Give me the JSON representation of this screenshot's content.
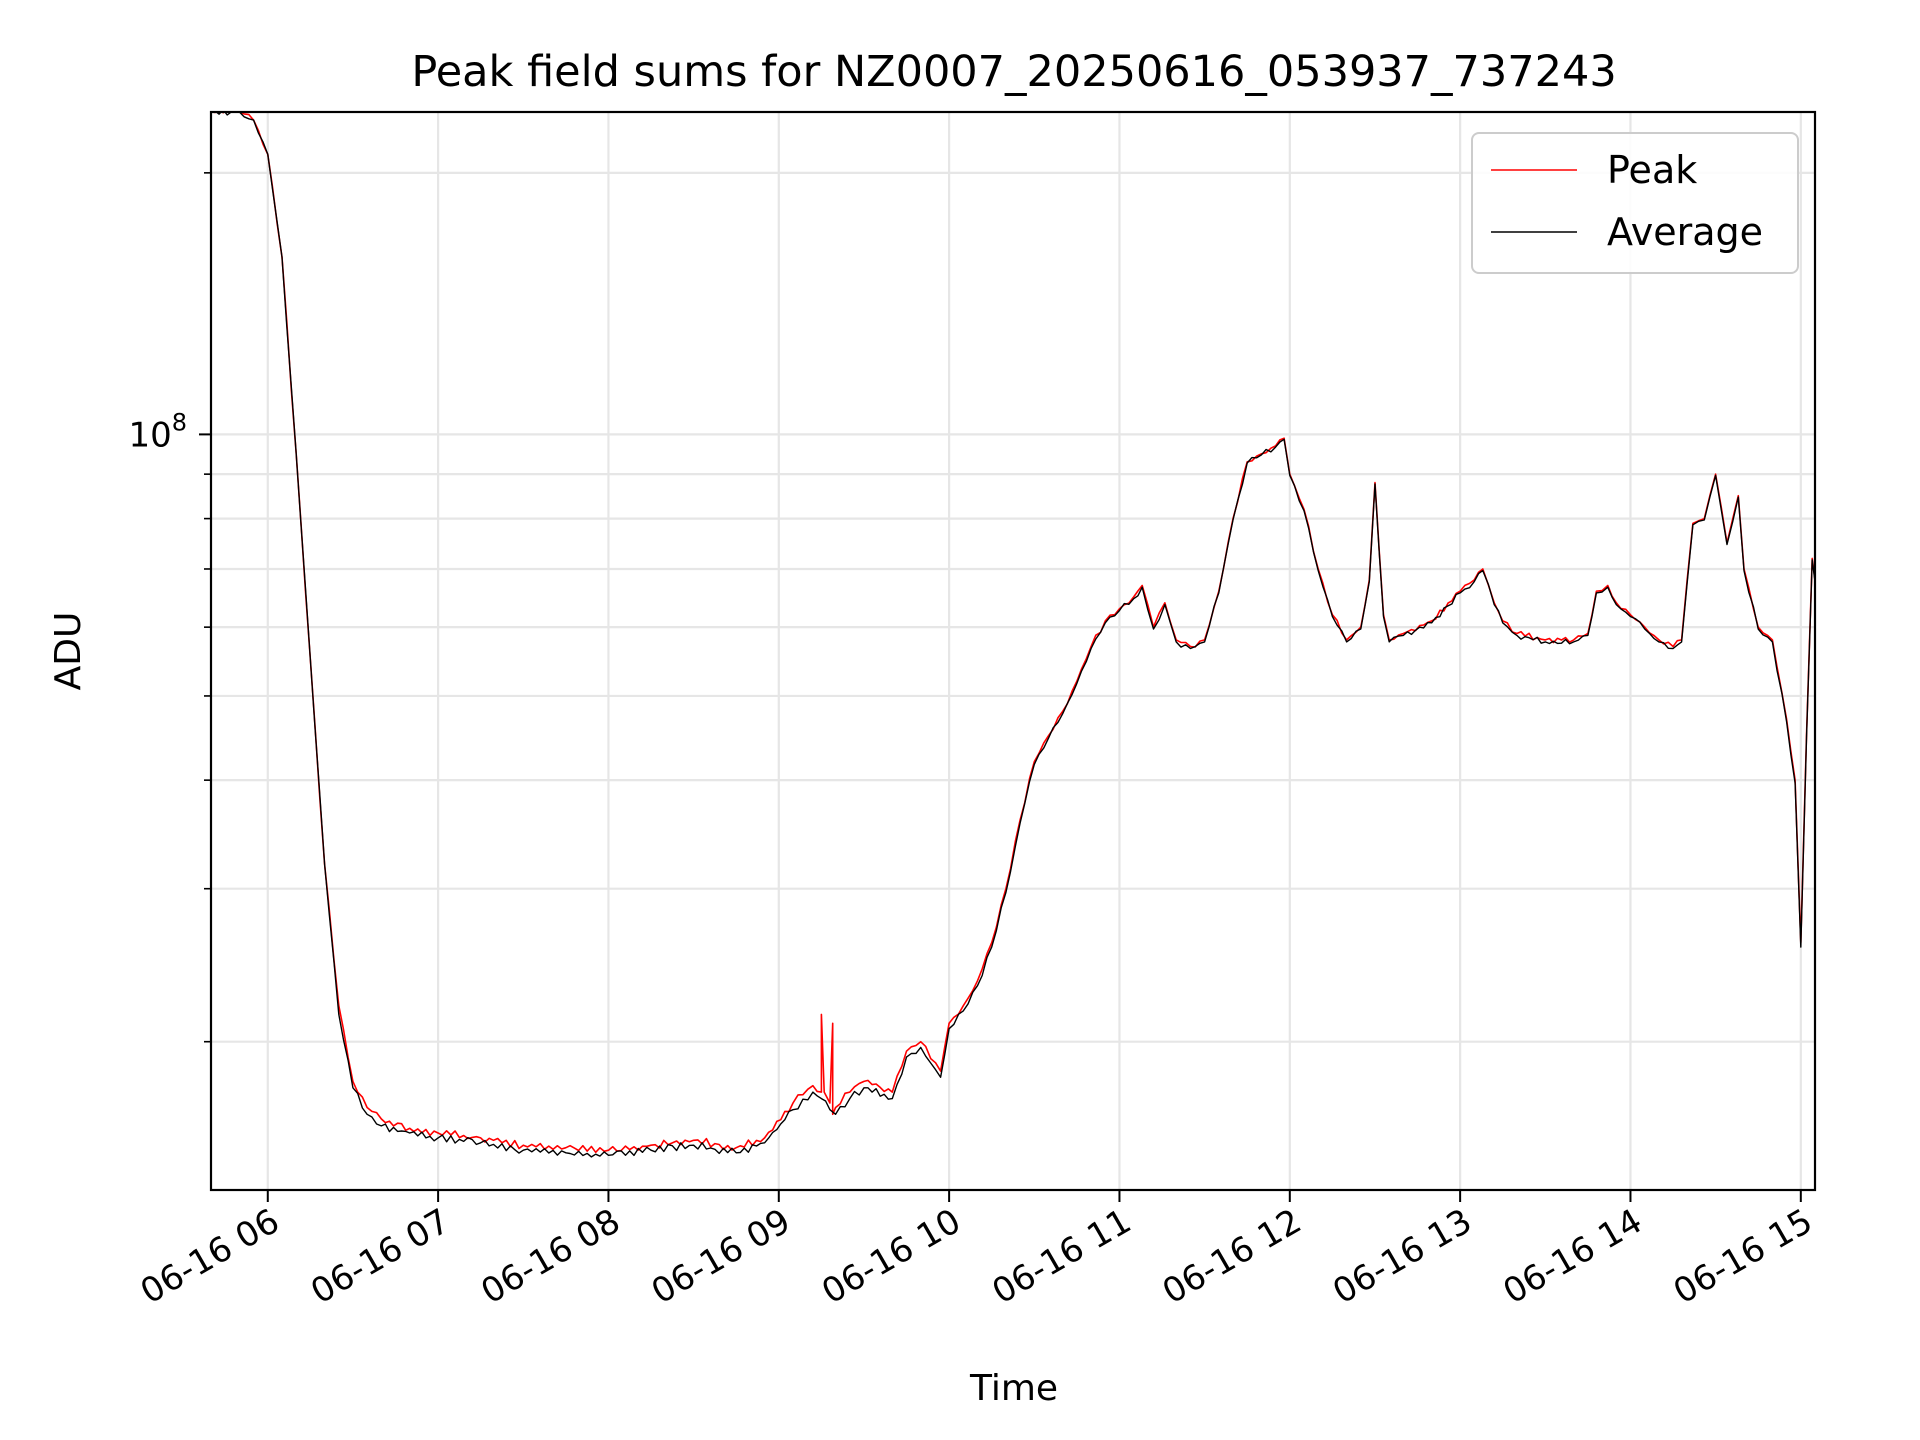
{
  "chart_data": {
    "type": "line",
    "title": "Peak field sums for NZ0007_20250616_053937_737243",
    "xlabel": "Time",
    "ylabel": "ADU",
    "y_scale": "log",
    "y_major_tick_label": {
      "base": "10",
      "exponent": "8",
      "value": 100000000
    },
    "y_minor_ticks": [
      20000000,
      30000000,
      40000000,
      50000000,
      60000000,
      70000000,
      80000000,
      90000000,
      200000000
    ],
    "x_unit": "time",
    "x_ticks": [
      {
        "t": "2025-06-16T06:00",
        "label": "06-16 06"
      },
      {
        "t": "2025-06-16T07:00",
        "label": "06-16 07"
      },
      {
        "t": "2025-06-16T08:00",
        "label": "06-16 08"
      },
      {
        "t": "2025-06-16T09:00",
        "label": "06-16 09"
      },
      {
        "t": "2025-06-16T10:00",
        "label": "06-16 10"
      },
      {
        "t": "2025-06-16T11:00",
        "label": "06-16 11"
      },
      {
        "t": "2025-06-16T12:00",
        "label": "06-16 12"
      },
      {
        "t": "2025-06-16T13:00",
        "label": "06-16 13"
      },
      {
        "t": "2025-06-16T14:00",
        "label": "06-16 14"
      },
      {
        "t": "2025-06-16T15:00",
        "label": "06-16 15"
      }
    ],
    "xlim": [
      "2025-06-16T05:40",
      "2025-06-16T15:05"
    ],
    "ylim": [
      13500000,
      235000000
    ],
    "grid": true,
    "legend_position": "top-right",
    "series": [
      {
        "name": "Peak",
        "color": "#ff0000",
        "t": [
          "2025-06-16T05:40",
          "2025-06-16T05:50",
          "2025-06-16T05:55",
          "2025-06-16T06:00",
          "2025-06-16T06:05",
          "2025-06-16T06:10",
          "2025-06-16T06:15",
          "2025-06-16T06:20",
          "2025-06-16T06:25",
          "2025-06-16T06:30",
          "2025-06-16T06:35",
          "2025-06-16T06:40",
          "2025-06-16T06:50",
          "2025-06-16T07:00",
          "2025-06-16T07:15",
          "2025-06-16T07:30",
          "2025-06-16T07:45",
          "2025-06-16T08:00",
          "2025-06-16T08:15",
          "2025-06-16T08:30",
          "2025-06-16T08:45",
          "2025-06-16T08:55",
          "2025-06-16T09:05",
          "2025-06-16T09:12",
          "2025-06-16T09:15",
          "2025-06-16T09:15",
          "2025-06-16T09:16",
          "2025-06-16T09:18",
          "2025-06-16T09:19",
          "2025-06-16T09:19",
          "2025-06-16T09:20",
          "2025-06-16T09:25",
          "2025-06-16T09:30",
          "2025-06-16T09:40",
          "2025-06-16T09:45",
          "2025-06-16T09:50",
          "2025-06-16T09:57",
          "2025-06-16T10:00",
          "2025-06-16T10:05",
          "2025-06-16T10:10",
          "2025-06-16T10:15",
          "2025-06-16T10:20",
          "2025-06-16T10:25",
          "2025-06-16T10:30",
          "2025-06-16T10:35",
          "2025-06-16T10:40",
          "2025-06-16T10:45",
          "2025-06-16T10:50",
          "2025-06-16T10:55",
          "2025-06-16T11:00",
          "2025-06-16T11:05",
          "2025-06-16T11:08",
          "2025-06-16T11:12",
          "2025-06-16T11:16",
          "2025-06-16T11:20",
          "2025-06-16T11:25",
          "2025-06-16T11:30",
          "2025-06-16T11:35",
          "2025-06-16T11:40",
          "2025-06-16T11:45",
          "2025-06-16T11:50",
          "2025-06-16T11:55",
          "2025-06-16T11:58",
          "2025-06-16T12:00",
          "2025-06-16T12:05",
          "2025-06-16T12:10",
          "2025-06-16T12:15",
          "2025-06-16T12:20",
          "2025-06-16T12:25",
          "2025-06-16T12:28",
          "2025-06-16T12:30",
          "2025-06-16T12:33",
          "2025-06-16T12:35",
          "2025-06-16T12:40",
          "2025-06-16T12:50",
          "2025-06-16T13:00",
          "2025-06-16T13:05",
          "2025-06-16T13:08",
          "2025-06-16T13:12",
          "2025-06-16T13:15",
          "2025-06-16T13:20",
          "2025-06-16T13:30",
          "2025-06-16T13:40",
          "2025-06-16T13:45",
          "2025-06-16T13:48",
          "2025-06-16T13:52",
          "2025-06-16T13:55",
          "2025-06-16T14:00",
          "2025-06-16T14:05",
          "2025-06-16T14:10",
          "2025-06-16T14:15",
          "2025-06-16T14:18",
          "2025-06-16T14:22",
          "2025-06-16T14:26",
          "2025-06-16T14:30",
          "2025-06-16T14:34",
          "2025-06-16T14:38",
          "2025-06-16T14:40",
          "2025-06-16T14:45",
          "2025-06-16T14:50",
          "2025-06-16T14:55",
          "2025-06-16T14:58",
          "2025-06-16T15:00",
          "2025-06-16T15:02",
          "2025-06-16T15:04",
          "2025-06-16T15:05"
        ],
        "values": [
          235000000,
          235000000,
          230000000,
          210000000,
          160000000,
          95000000,
          55000000,
          32000000,
          22000000,
          18000000,
          16800000,
          16300000,
          15900000,
          15700000,
          15500000,
          15200000,
          15100000,
          15000000,
          15200000,
          15400000,
          15100000,
          15500000,
          17000000,
          17800000,
          17500000,
          21500000,
          17500000,
          17000000,
          21000000,
          16500000,
          16800000,
          17500000,
          18000000,
          17500000,
          19500000,
          20000000,
          18500000,
          21000000,
          22000000,
          23500000,
          26000000,
          30000000,
          36000000,
          42000000,
          45000000,
          48000000,
          52000000,
          57000000,
          61000000,
          63000000,
          65000000,
          67000000,
          60000000,
          64000000,
          58000000,
          57000000,
          58000000,
          66000000,
          80000000,
          93000000,
          95000000,
          97000000,
          99000000,
          90000000,
          82000000,
          70000000,
          62000000,
          58000000,
          60000000,
          68000000,
          88000000,
          62000000,
          58000000,
          59000000,
          61000000,
          66000000,
          68000000,
          70000000,
          64000000,
          61000000,
          59000000,
          58000000,
          58000000,
          59000000,
          66000000,
          67000000,
          64000000,
          62000000,
          60000000,
          58000000,
          57000000,
          58000000,
          79000000,
          80000000,
          90000000,
          75000000,
          85000000,
          70000000,
          60000000,
          58000000,
          47000000,
          40000000,
          26000000,
          45000000,
          72000000,
          68000000
        ]
      },
      {
        "name": "Average",
        "color": "#000000",
        "t": [
          "2025-06-16T05:40",
          "2025-06-16T05:50",
          "2025-06-16T05:55",
          "2025-06-16T06:00",
          "2025-06-16T06:05",
          "2025-06-16T06:10",
          "2025-06-16T06:15",
          "2025-06-16T06:20",
          "2025-06-16T06:25",
          "2025-06-16T06:30",
          "2025-06-16T06:35",
          "2025-06-16T06:40",
          "2025-06-16T06:50",
          "2025-06-16T07:00",
          "2025-06-16T07:15",
          "2025-06-16T07:30",
          "2025-06-16T07:45",
          "2025-06-16T08:00",
          "2025-06-16T08:15",
          "2025-06-16T08:30",
          "2025-06-16T08:45",
          "2025-06-16T08:55",
          "2025-06-16T09:05",
          "2025-06-16T09:12",
          "2025-06-16T09:15",
          "2025-06-16T09:18",
          "2025-06-16T09:20",
          "2025-06-16T09:25",
          "2025-06-16T09:30",
          "2025-06-16T09:40",
          "2025-06-16T09:45",
          "2025-06-16T09:50",
          "2025-06-16T09:57",
          "2025-06-16T10:00",
          "2025-06-16T10:05",
          "2025-06-16T10:10",
          "2025-06-16T10:15",
          "2025-06-16T10:20",
          "2025-06-16T10:25",
          "2025-06-16T10:30",
          "2025-06-16T10:35",
          "2025-06-16T10:40",
          "2025-06-16T10:45",
          "2025-06-16T10:50",
          "2025-06-16T10:55",
          "2025-06-16T11:00",
          "2025-06-16T11:05",
          "2025-06-16T11:08",
          "2025-06-16T11:12",
          "2025-06-16T11:16",
          "2025-06-16T11:20",
          "2025-06-16T11:25",
          "2025-06-16T11:30",
          "2025-06-16T11:35",
          "2025-06-16T11:40",
          "2025-06-16T11:45",
          "2025-06-16T11:50",
          "2025-06-16T11:55",
          "2025-06-16T11:58",
          "2025-06-16T12:00",
          "2025-06-16T12:05",
          "2025-06-16T12:10",
          "2025-06-16T12:15",
          "2025-06-16T12:20",
          "2025-06-16T12:25",
          "2025-06-16T12:28",
          "2025-06-16T12:30",
          "2025-06-16T12:33",
          "2025-06-16T12:35",
          "2025-06-16T12:40",
          "2025-06-16T12:50",
          "2025-06-16T13:00",
          "2025-06-16T13:05",
          "2025-06-16T13:08",
          "2025-06-16T13:12",
          "2025-06-16T13:15",
          "2025-06-16T13:20",
          "2025-06-16T13:30",
          "2025-06-16T13:40",
          "2025-06-16T13:45",
          "2025-06-16T13:48",
          "2025-06-16T13:52",
          "2025-06-16T13:55",
          "2025-06-16T14:00",
          "2025-06-16T14:05",
          "2025-06-16T14:10",
          "2025-06-16T14:15",
          "2025-06-16T14:18",
          "2025-06-16T14:22",
          "2025-06-16T14:26",
          "2025-06-16T14:30",
          "2025-06-16T14:34",
          "2025-06-16T14:38",
          "2025-06-16T14:40",
          "2025-06-16T14:45",
          "2025-06-16T14:50",
          "2025-06-16T14:55",
          "2025-06-16T14:58",
          "2025-06-16T15:00",
          "2025-06-16T15:02",
          "2025-06-16T15:04",
          "2025-06-16T15:05"
        ],
        "values": [
          235000000,
          235000000,
          230000000,
          210000000,
          160000000,
          95000000,
          55000000,
          32000000,
          21500000,
          17700000,
          16500000,
          16000000,
          15700000,
          15500000,
          15300000,
          15000000,
          14900000,
          14800000,
          15000000,
          15200000,
          14900000,
          15300000,
          16700000,
          17500000,
          17200000,
          16700000,
          16500000,
          17200000,
          17700000,
          17200000,
          19200000,
          19700000,
          18200000,
          20700000,
          21700000,
          23200000,
          25700000,
          29700000,
          35700000,
          41700000,
          44700000,
          47700000,
          51700000,
          56700000,
          60700000,
          62700000,
          64700000,
          66700000,
          59700000,
          63700000,
          57700000,
          56700000,
          57700000,
          65700000,
          79700000,
          92700000,
          94700000,
          96700000,
          98700000,
          89700000,
          81700000,
          69700000,
          61700000,
          57700000,
          59700000,
          67700000,
          87700000,
          61700000,
          57700000,
          58700000,
          60700000,
          65700000,
          67700000,
          69700000,
          63700000,
          60700000,
          58700000,
          57700000,
          57700000,
          58700000,
          65700000,
          66700000,
          63700000,
          61700000,
          59700000,
          57700000,
          56700000,
          57700000,
          78700000,
          79700000,
          89700000,
          74700000,
          84700000,
          69700000,
          59700000,
          57700000,
          46700000,
          39700000,
          25700000,
          44700000,
          71700000,
          67700000
        ]
      }
    ]
  }
}
